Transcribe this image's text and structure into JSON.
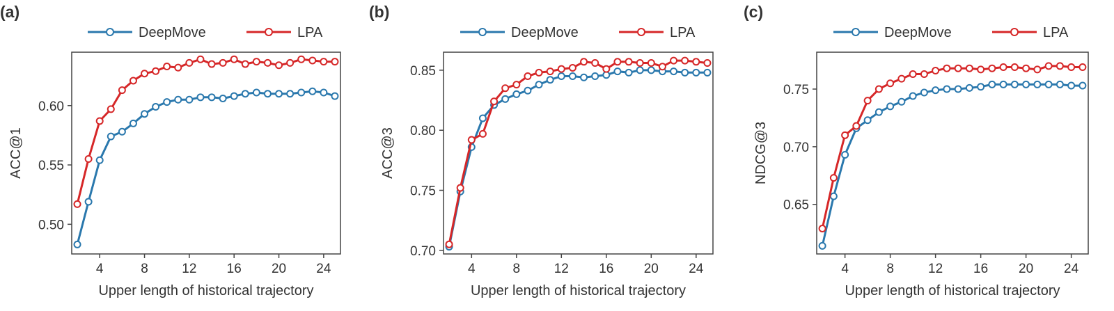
{
  "colors": {
    "deepmove": "#2a78ad",
    "lpa": "#d62728",
    "axis": "#444444",
    "text": "#333333"
  },
  "chart_data": [
    {
      "type": "line",
      "panel_label": "(a)",
      "xlabel": "Upper length of historical trajectory",
      "ylabel": "ACC@1",
      "xlim": [
        1.5,
        25.5
      ],
      "ylim": [
        0.475,
        0.645
      ],
      "xticks": [
        4,
        8,
        12,
        16,
        20,
        24
      ],
      "yticks": [
        0.5,
        0.55,
        0.6
      ],
      "ytick_labels": [
        "0.50",
        "0.55",
        "0.60"
      ],
      "x": [
        2,
        3,
        4,
        5,
        6,
        7,
        8,
        9,
        10,
        11,
        12,
        13,
        14,
        15,
        16,
        17,
        18,
        19,
        20,
        21,
        22,
        23,
        24,
        25
      ],
      "legend": {
        "position": "top",
        "entries": [
          "DeepMove",
          "LPA"
        ]
      },
      "series": [
        {
          "name": "DeepMove",
          "color": "#2a78ad",
          "values": [
            0.483,
            0.519,
            0.554,
            0.574,
            0.578,
            0.585,
            0.593,
            0.599,
            0.603,
            0.605,
            0.605,
            0.607,
            0.607,
            0.606,
            0.608,
            0.61,
            0.611,
            0.61,
            0.61,
            0.61,
            0.611,
            0.612,
            0.611,
            0.608
          ]
        },
        {
          "name": "LPA",
          "color": "#d62728",
          "values": [
            0.517,
            0.555,
            0.587,
            0.597,
            0.613,
            0.621,
            0.627,
            0.629,
            0.633,
            0.632,
            0.636,
            0.639,
            0.635,
            0.636,
            0.639,
            0.635,
            0.637,
            0.636,
            0.634,
            0.636,
            0.639,
            0.638,
            0.637,
            0.637
          ]
        }
      ]
    },
    {
      "type": "line",
      "panel_label": "(b)",
      "xlabel": "Upper length of historical trajectory",
      "ylabel": "ACC@3",
      "xlim": [
        1.5,
        25.5
      ],
      "ylim": [
        0.697,
        0.865
      ],
      "xticks": [
        4,
        8,
        12,
        16,
        20,
        24
      ],
      "yticks": [
        0.7,
        0.75,
        0.8,
        0.85
      ],
      "ytick_labels": [
        "0.70",
        "0.75",
        "0.80",
        "0.85"
      ],
      "x": [
        2,
        3,
        4,
        5,
        6,
        7,
        8,
        9,
        10,
        11,
        12,
        13,
        14,
        15,
        16,
        17,
        18,
        19,
        20,
        21,
        22,
        23,
        24,
        25
      ],
      "legend": {
        "position": "top",
        "entries": [
          "DeepMove",
          "LPA"
        ]
      },
      "series": [
        {
          "name": "DeepMove",
          "color": "#2a78ad",
          "values": [
            0.703,
            0.749,
            0.786,
            0.81,
            0.821,
            0.826,
            0.83,
            0.833,
            0.838,
            0.842,
            0.845,
            0.845,
            0.844,
            0.845,
            0.846,
            0.849,
            0.848,
            0.85,
            0.85,
            0.849,
            0.849,
            0.848,
            0.848,
            0.848
          ]
        },
        {
          "name": "LPA",
          "color": "#d62728",
          "values": [
            0.705,
            0.752,
            0.792,
            0.797,
            0.824,
            0.835,
            0.838,
            0.845,
            0.848,
            0.849,
            0.851,
            0.852,
            0.857,
            0.856,
            0.851,
            0.857,
            0.857,
            0.856,
            0.856,
            0.853,
            0.858,
            0.858,
            0.857,
            0.856
          ]
        }
      ]
    },
    {
      "type": "line",
      "panel_label": "(c)",
      "xlabel": "Upper length of historical trajectory",
      "ylabel": "NDCG@3",
      "xlim": [
        1.5,
        25.5
      ],
      "ylim": [
        0.607,
        0.782
      ],
      "xticks": [
        4,
        8,
        12,
        16,
        20,
        24
      ],
      "yticks": [
        0.65,
        0.7,
        0.75
      ],
      "ytick_labels": [
        "0.65",
        "0.70",
        "0.75"
      ],
      "x": [
        2,
        3,
        4,
        5,
        6,
        7,
        8,
        9,
        10,
        11,
        12,
        13,
        14,
        15,
        16,
        17,
        18,
        19,
        20,
        21,
        22,
        23,
        24,
        25
      ],
      "legend": {
        "position": "top",
        "entries": [
          "DeepMove",
          "LPA"
        ]
      },
      "series": [
        {
          "name": "DeepMove",
          "color": "#2a78ad",
          "values": [
            0.614,
            0.657,
            0.693,
            0.716,
            0.723,
            0.73,
            0.735,
            0.739,
            0.744,
            0.747,
            0.749,
            0.75,
            0.75,
            0.751,
            0.752,
            0.754,
            0.754,
            0.754,
            0.754,
            0.754,
            0.754,
            0.754,
            0.753,
            0.753
          ]
        },
        {
          "name": "LPA",
          "color": "#d62728",
          "values": [
            0.629,
            0.673,
            0.71,
            0.718,
            0.74,
            0.75,
            0.755,
            0.759,
            0.763,
            0.763,
            0.766,
            0.768,
            0.768,
            0.768,
            0.767,
            0.768,
            0.769,
            0.769,
            0.768,
            0.767,
            0.77,
            0.77,
            0.769,
            0.769
          ]
        }
      ]
    }
  ]
}
